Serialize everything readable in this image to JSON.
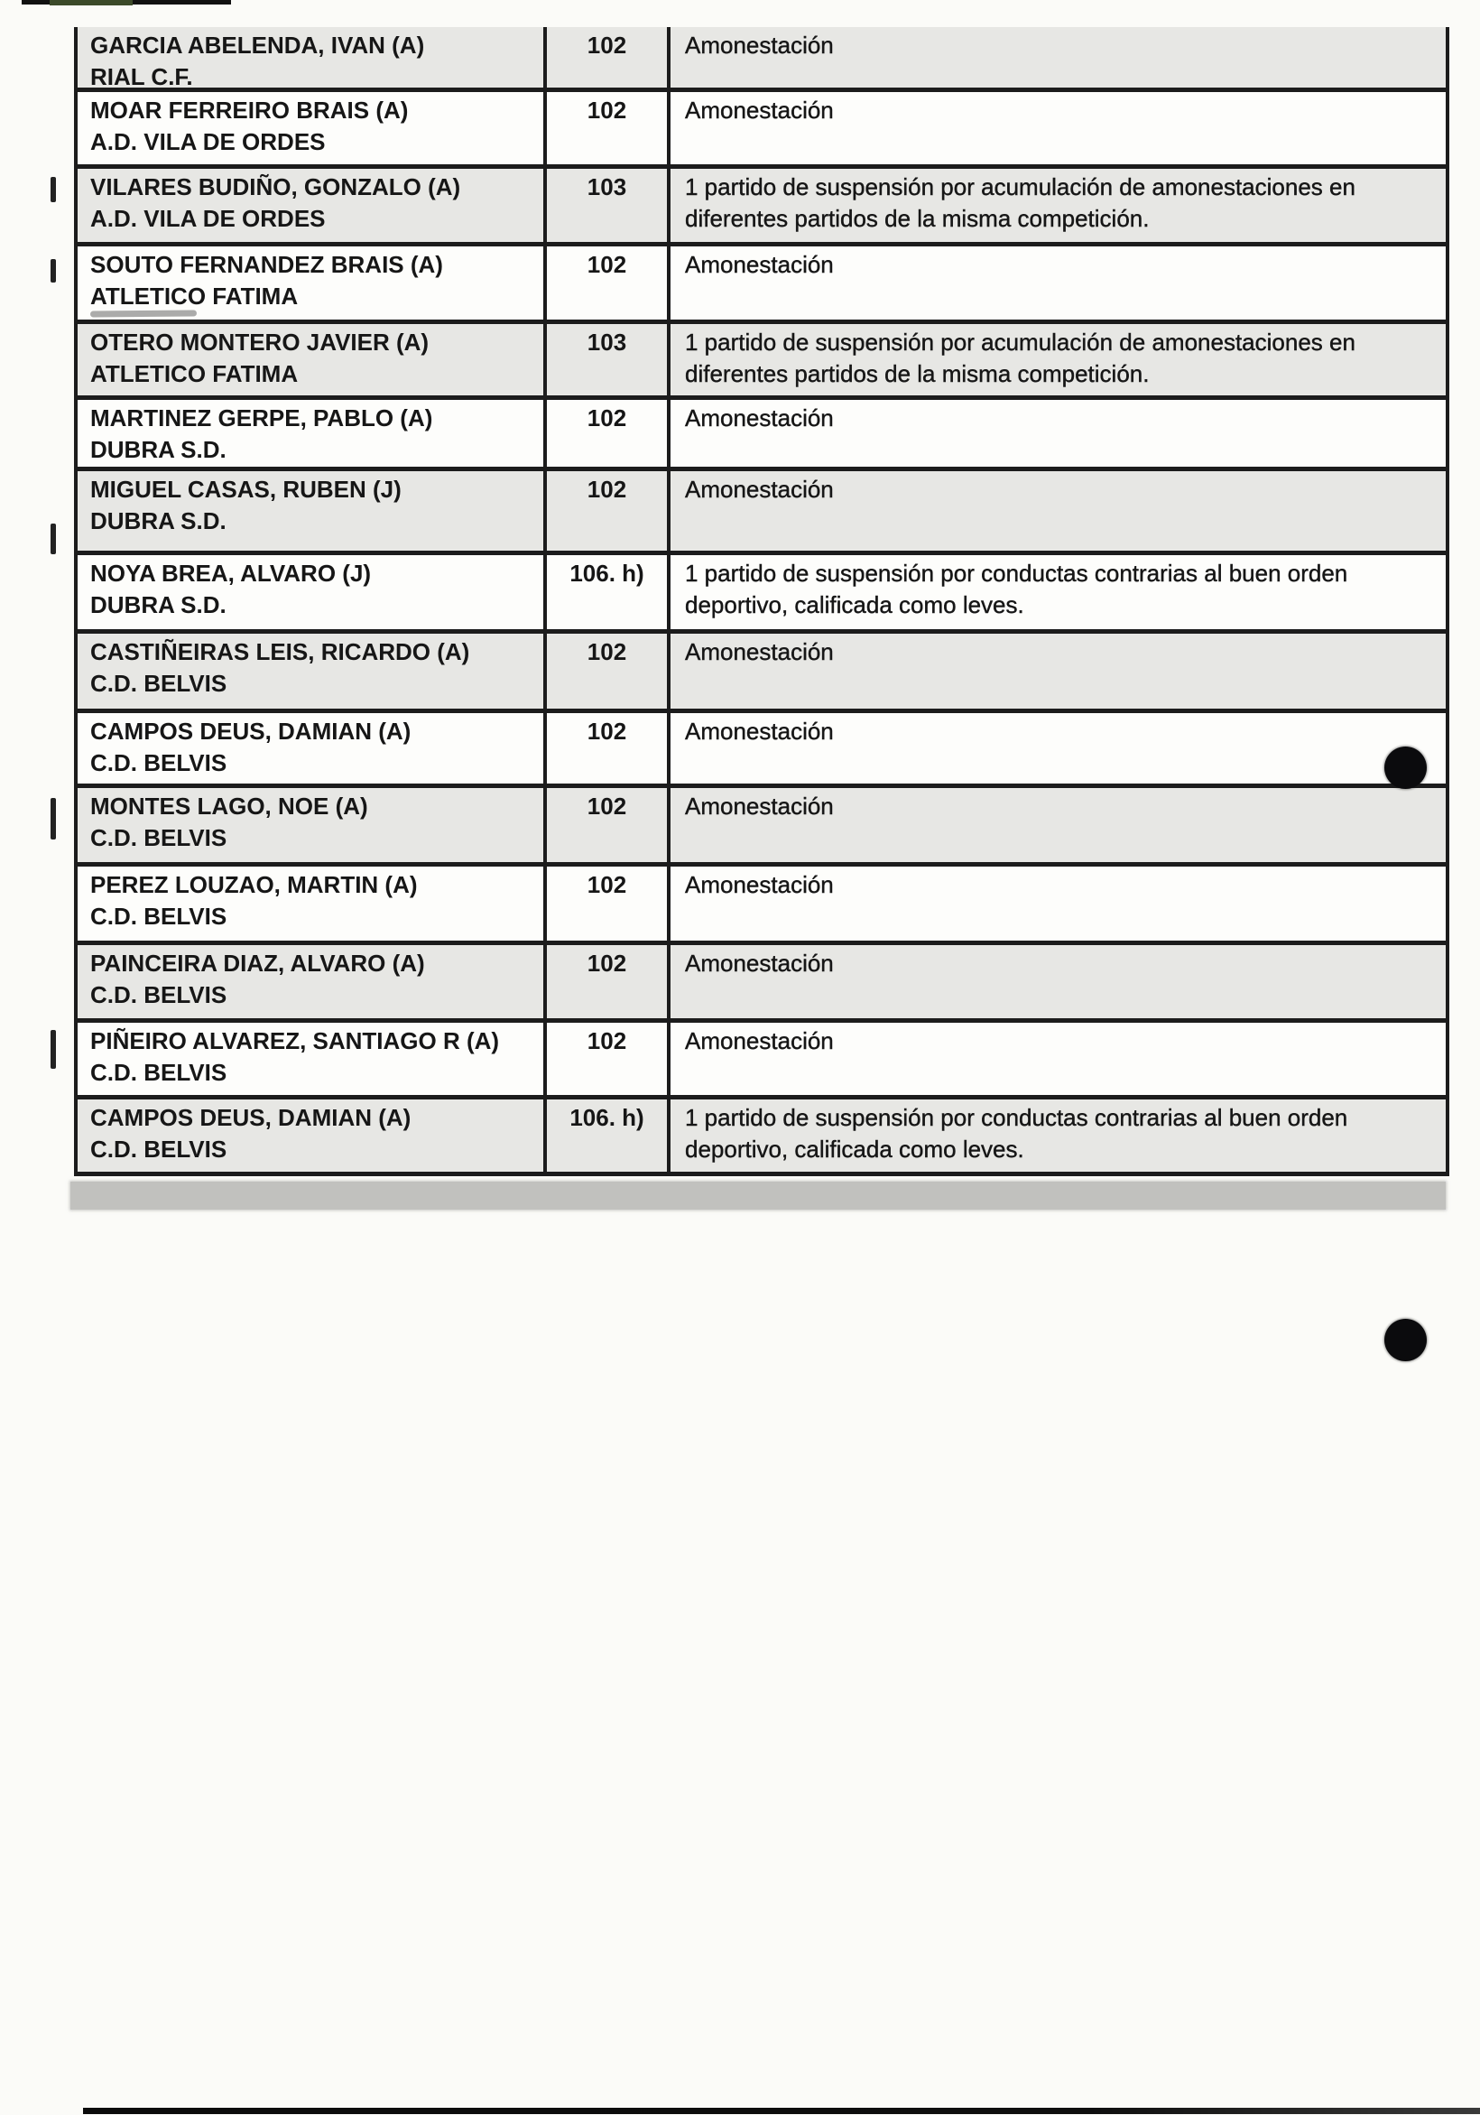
{
  "document": {
    "kind": "scanned sanctions list page",
    "language": "es",
    "colors": {
      "ink": "#161616",
      "table_border": "#1c1c1c",
      "row_shaded": "#e7e7e4",
      "row_white": "#fdfdfb",
      "scan_bar_gray": "#c1c1be",
      "punch_dot": "#0b0b0d"
    },
    "table": {
      "rows": [
        {
          "player": "GARCIA ABELENDA, IVAN (A)",
          "club": "RIAL C.F.",
          "article": "102",
          "sanction": "Amonestación",
          "sanction_lines": [
            "Amonestación"
          ]
        },
        {
          "player": "MOAR FERREIRO BRAIS (A)",
          "club": "A.D. VILA DE ORDES",
          "article": "102",
          "sanction": "Amonestación",
          "sanction_lines": [
            "Amonestación"
          ]
        },
        {
          "player": "VILARES BUDIÑO, GONZALO (A)",
          "club": "A.D. VILA DE ORDES",
          "article": "103",
          "sanction": "1 partido de suspensión por acumulación de amonestaciones en diferentes partidos de la misma competición.",
          "sanction_lines": [
            "1 partido de suspensión por acumulación de amonestaciones en",
            "diferentes partidos de la misma competición."
          ]
        },
        {
          "player": "SOUTO FERNANDEZ BRAIS (A)",
          "club": "ATLETICO FATIMA",
          "article": "102",
          "sanction": "Amonestación",
          "sanction_lines": [
            "Amonestación"
          ]
        },
        {
          "player": "OTERO MONTERO JAVIER (A)",
          "club": "ATLETICO FATIMA",
          "article": "103",
          "sanction": "1 partido de suspensión por acumulación de amonestaciones en diferentes partidos de la misma competición.",
          "sanction_lines": [
            "1 partido de suspensión por acumulación de amonestaciones en",
            "diferentes partidos de la misma competición."
          ]
        },
        {
          "player": "MARTINEZ GERPE, PABLO (A)",
          "club": "DUBRA S.D.",
          "article": "102",
          "sanction": "Amonestación",
          "sanction_lines": [
            "Amonestación"
          ]
        },
        {
          "player": "MIGUEL CASAS, RUBEN (J)",
          "club": "DUBRA S.D.",
          "article": "102",
          "sanction": "Amonestación",
          "sanction_lines": [
            "Amonestación"
          ]
        },
        {
          "player": "NOYA BREA, ALVARO (J)",
          "club": "DUBRA S.D.",
          "article": "106. h)",
          "sanction": "1 partido de suspensión por conductas contrarias al buen orden deportivo, calificada como leves.",
          "sanction_lines": [
            "1 partido de suspensión por conductas contrarias al buen orden",
            "deportivo, calificada como leves."
          ]
        },
        {
          "player": "CASTIÑEIRAS LEIS, RICARDO (A)",
          "club": "C.D. BELVIS",
          "article": "102",
          "sanction": "Amonestación",
          "sanction_lines": [
            "Amonestación"
          ]
        },
        {
          "player": "CAMPOS DEUS, DAMIAN (A)",
          "club": "C.D. BELVIS",
          "article": "102",
          "sanction": "Amonestación",
          "sanction_lines": [
            "Amonestación"
          ]
        },
        {
          "player": "MONTES LAGO, NOE (A)",
          "club": "C.D. BELVIS",
          "article": "102",
          "sanction": "Amonestación",
          "sanction_lines": [
            "Amonestación"
          ]
        },
        {
          "player": "PEREZ LOUZAO, MARTIN (A)",
          "club": "C.D. BELVIS",
          "article": "102",
          "sanction": "Amonestación",
          "sanction_lines": [
            "Amonestación"
          ]
        },
        {
          "player": "PAINCEIRA DIAZ, ALVARO (A)",
          "club": "C.D. BELVIS",
          "article": "102",
          "sanction": "Amonestación",
          "sanction_lines": [
            "Amonestación"
          ]
        },
        {
          "player": "PIÑEIRO ALVAREZ, SANTIAGO R (A)",
          "club": "C.D. BELVIS",
          "article": "102",
          "sanction": "Amonestación",
          "sanction_lines": [
            "Amonestación"
          ]
        },
        {
          "player": "CAMPOS DEUS, DAMIAN (A)",
          "club": "C.D. BELVIS",
          "article": "106. h)",
          "sanction": "1 partido de suspensión por conductas contrarias al buen orden deportivo, calificada como leves.",
          "sanction_lines": [
            "1 partido de suspensión por conductas contrarias al buen orden",
            "deportivo, calificada como leves."
          ]
        }
      ]
    }
  }
}
